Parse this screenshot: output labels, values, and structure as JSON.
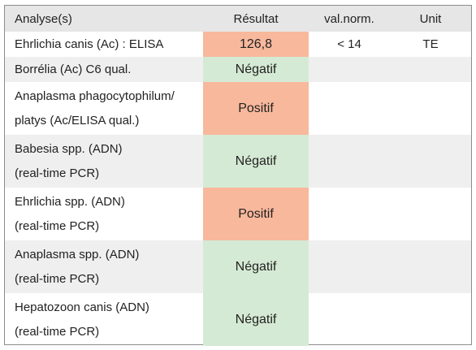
{
  "table": {
    "headers": [
      "Analyse(s)",
      "Résultat",
      "val.norm.",
      "Unit"
    ],
    "rows": [
      {
        "analyse_lines": [
          "Ehrlichia canis (Ac) : ELISA"
        ],
        "result": "126,8",
        "status": "positive",
        "norm": "< 14",
        "unit": "TE"
      },
      {
        "analyse_lines": [
          "Borrélia (Ac) C6 qual."
        ],
        "result": "Négatif",
        "status": "negative",
        "norm": "",
        "unit": ""
      },
      {
        "analyse_lines": [
          "Anaplasma phagocytophilum/",
          "platys (Ac/ELISA qual.)"
        ],
        "result": "Positif",
        "status": "positive",
        "norm": "",
        "unit": ""
      },
      {
        "analyse_lines": [
          "Babesia spp. (ADN)",
          "(real-time PCR)"
        ],
        "result": "Négatif",
        "status": "negative",
        "norm": "",
        "unit": ""
      },
      {
        "analyse_lines": [
          "Ehrlichia spp. (ADN)",
          "(real-time PCR)"
        ],
        "result": "Positif",
        "status": "positive",
        "norm": "",
        "unit": ""
      },
      {
        "analyse_lines": [
          "Anaplasma spp. (ADN)",
          "(real-time PCR)"
        ],
        "result": "Négatif",
        "status": "negative",
        "norm": "",
        "unit": ""
      },
      {
        "analyse_lines": [
          "Hepatozoon canis (ADN)",
          "(real-time PCR)"
        ],
        "result": "Négatif",
        "status": "negative",
        "norm": "",
        "unit": ""
      }
    ]
  },
  "colors": {
    "positive": "#f8b89c",
    "negative": "#d5ead4",
    "header_bg": "#e6e6e6",
    "stripe_bg": "#efefef"
  }
}
